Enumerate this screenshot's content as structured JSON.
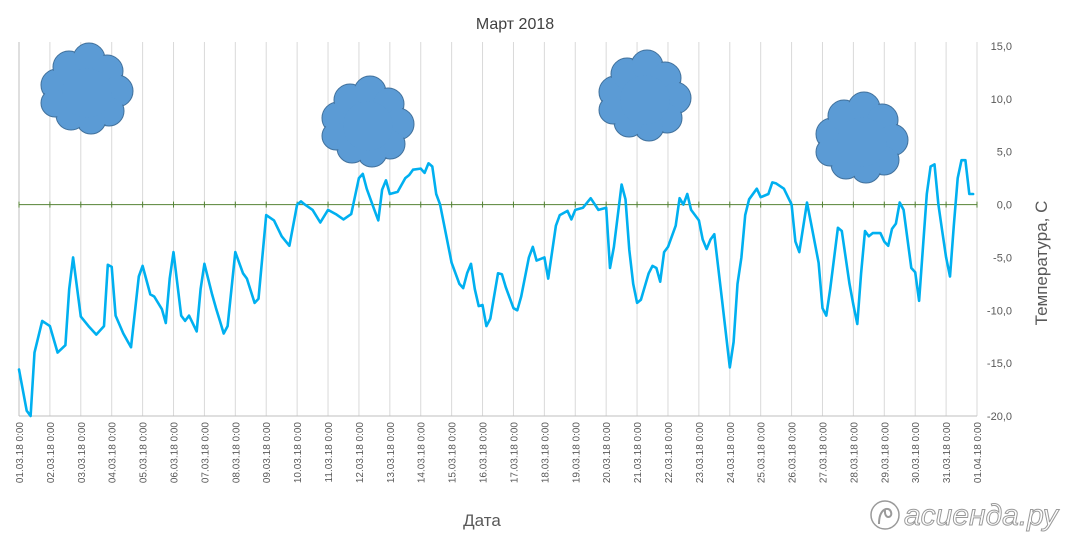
{
  "chart_data": {
    "type": "line",
    "title": "Март 2018",
    "xlabel": "Дата",
    "ylabel": "Температура, С",
    "ylim": [
      -20,
      15
    ],
    "y_tick_step": 5,
    "y_ticks": [
      "15,0",
      "10,0",
      "5,0",
      "0,0",
      "-5,0",
      "-10,0",
      "-15,0",
      "-20,0"
    ],
    "y_axis_position": "right",
    "zero_line": true,
    "grid": "vertical",
    "x_ticks": [
      "01.03.18 0:00",
      "02.03.18 0:00",
      "03.03.18 0:00",
      "04.03.18 0:00",
      "05.03.18 0:00",
      "06.03.18 0:00",
      "07.03.18 0:00",
      "08.03.18 0:00",
      "09.03.18 0:00",
      "10.03.18 0:00",
      "11.03.18 0:00",
      "12.03.18 0:00",
      "13.03.18 0:00",
      "14.03.18 0:00",
      "15.03.18 0:00",
      "16.03.18 0:00",
      "17.03.18 0:00",
      "18.03.18 0:00",
      "19.03.18 0:00",
      "20.03.18 0:00",
      "21.03.18 0:00",
      "22.03.18 0:00",
      "23.03.18 0:00",
      "24.03.18 0:00",
      "25.03.18 0:00",
      "26.03.18 0:00",
      "27.03.18 0:00",
      "28.03.18 0:00",
      "29.03.18 0:00",
      "30.03.18 0:00",
      "31.03.18 0:00",
      "01.04.18 0:00"
    ],
    "x_start": "01.03.18 0:00",
    "x_end": "01.04.18 0:00",
    "series": [
      {
        "color": "#00b0f0",
        "points": [
          [
            "01.03.18 0:00",
            -15.6
          ],
          [
            "01.03.18 6:00",
            -19.5
          ],
          [
            "01.03.18 9:00",
            -20.0
          ],
          [
            "01.03.18 12:00",
            -14.0
          ],
          [
            "01.03.18 18:00",
            -11.0
          ],
          [
            "02.03.18 0:00",
            -11.5
          ],
          [
            "02.03.18 6:00",
            -14.0
          ],
          [
            "02.03.18 12:00",
            -13.3
          ],
          [
            "02.03.18 15:00",
            -8.0
          ],
          [
            "02.03.18 18:00",
            -5.0
          ],
          [
            "03.03.18 0:00",
            -10.6
          ],
          [
            "03.03.18 6:00",
            -11.5
          ],
          [
            "03.03.18 12:00",
            -12.3
          ],
          [
            "03.03.18 18:00",
            -11.5
          ],
          [
            "03.03.18 21:00",
            -5.7
          ],
          [
            "04.03.18 0:00",
            -5.9
          ],
          [
            "04.03.18 3:00",
            -10.5
          ],
          [
            "04.03.18 9:00",
            -12.2
          ],
          [
            "04.03.18 15:00",
            -13.5
          ],
          [
            "04.03.18 21:00",
            -6.8
          ],
          [
            "05.03.18 0:00",
            -5.8
          ],
          [
            "05.03.18 6:00",
            -8.5
          ],
          [
            "05.03.18 9:00",
            -8.7
          ],
          [
            "05.03.18 15:00",
            -9.9
          ],
          [
            "05.03.18 18:00",
            -11.2
          ],
          [
            "05.03.18 21:00",
            -7.0
          ],
          [
            "06.03.18 0:00",
            -4.5
          ],
          [
            "06.03.18 6:00",
            -10.5
          ],
          [
            "06.03.18 9:00",
            -11.0
          ],
          [
            "06.03.18 12:00",
            -10.5
          ],
          [
            "06.03.18 18:00",
            -12.0
          ],
          [
            "06.03.18 21:00",
            -8.0
          ],
          [
            "07.03.18 0:00",
            -5.6
          ],
          [
            "07.03.18 6:00",
            -8.5
          ],
          [
            "07.03.18 9:00",
            -9.8
          ],
          [
            "07.03.18 12:00",
            -11.0
          ],
          [
            "07.03.18 15:00",
            -12.2
          ],
          [
            "07.03.18 18:00",
            -11.5
          ],
          [
            "08.03.18 0:00",
            -4.5
          ],
          [
            "08.03.18 6:00",
            -6.5
          ],
          [
            "08.03.18 9:00",
            -7.0
          ],
          [
            "08.03.18 15:00",
            -9.3
          ],
          [
            "08.03.18 18:00",
            -8.9
          ],
          [
            "09.03.18 0:00",
            -1.0
          ],
          [
            "09.03.18 6:00",
            -1.5
          ],
          [
            "09.03.18 12:00",
            -3.0
          ],
          [
            "09.03.18 18:00",
            -3.9
          ],
          [
            "10.03.18 0:00",
            0.0
          ],
          [
            "10.03.18 3:00",
            0.3
          ],
          [
            "10.03.18 6:00",
            0.0
          ],
          [
            "10.03.18 12:00",
            -0.5
          ],
          [
            "10.03.18 18:00",
            -1.7
          ],
          [
            "11.03.18 0:00",
            -0.5
          ],
          [
            "11.03.18 6:00",
            -0.9
          ],
          [
            "11.03.18 12:00",
            -1.4
          ],
          [
            "11.03.18 18:00",
            -0.9
          ],
          [
            "12.03.18 0:00",
            2.5
          ],
          [
            "12.03.18 3:00",
            2.9
          ],
          [
            "12.03.18 6:00",
            1.5
          ],
          [
            "12.03.18 12:00",
            -0.5
          ],
          [
            "12.03.18 15:00",
            -1.5
          ],
          [
            "12.03.18 18:00",
            1.4
          ],
          [
            "12.03.18 21:00",
            2.3
          ],
          [
            "13.03.18 0:00",
            1.0
          ],
          [
            "13.03.18 6:00",
            1.2
          ],
          [
            "13.03.18 12:00",
            2.5
          ],
          [
            "13.03.18 15:00",
            2.8
          ],
          [
            "13.03.18 18:00",
            3.3
          ],
          [
            "14.03.18 0:00",
            3.4
          ],
          [
            "14.03.18 3:00",
            3.0
          ],
          [
            "14.03.18 6:00",
            3.9
          ],
          [
            "14.03.18 9:00",
            3.6
          ],
          [
            "14.03.18 12:00",
            1.0
          ],
          [
            "14.03.18 15:00",
            0.0
          ],
          [
            "15.03.18 0:00",
            -5.5
          ],
          [
            "15.03.18 6:00",
            -7.5
          ],
          [
            "15.03.18 9:00",
            -7.9
          ],
          [
            "15.03.18 12:00",
            -6.5
          ],
          [
            "15.03.18 15:00",
            -5.6
          ],
          [
            "15.03.18 18:00",
            -8.0
          ],
          [
            "15.03.18 21:00",
            -9.6
          ],
          [
            "16.03.18 0:00",
            -9.5
          ],
          [
            "16.03.18 3:00",
            -11.5
          ],
          [
            "16.03.18 6:00",
            -10.8
          ],
          [
            "16.03.18 12:00",
            -6.5
          ],
          [
            "16.03.18 15:00",
            -6.6
          ],
          [
            "16.03.18 18:00",
            -7.8
          ],
          [
            "17.03.18 0:00",
            -9.8
          ],
          [
            "17.03.18 3:00",
            -10.0
          ],
          [
            "17.03.18 6:00",
            -8.7
          ],
          [
            "17.03.18 12:00",
            -5.0
          ],
          [
            "17.03.18 15:00",
            -4.0
          ],
          [
            "17.03.18 18:00",
            -5.3
          ],
          [
            "18.03.18 0:00",
            -5.0
          ],
          [
            "18.03.18 3:00",
            -7.0
          ],
          [
            "18.03.18 9:00",
            -2.0
          ],
          [
            "18.03.18 12:00",
            -1.0
          ],
          [
            "18.03.18 18:00",
            -0.6
          ],
          [
            "18.03.18 21:00",
            -1.4
          ],
          [
            "19.03.18 0:00",
            -0.5
          ],
          [
            "19.03.18 6:00",
            -0.3
          ],
          [
            "19.03.18 12:00",
            0.6
          ],
          [
            "19.03.18 18:00",
            -0.5
          ],
          [
            "20.03.18 0:00",
            -0.3
          ],
          [
            "20.03.18 3:00",
            -6.0
          ],
          [
            "20.03.18 6:00",
            -4.0
          ],
          [
            "20.03.18 12:00",
            1.9
          ],
          [
            "20.03.18 15:00",
            0.5
          ],
          [
            "20.03.18 18:00",
            -4.3
          ],
          [
            "20.03.18 21:00",
            -7.5
          ],
          [
            "21.03.18 0:00",
            -9.3
          ],
          [
            "21.03.18 3:00",
            -9.0
          ],
          [
            "21.03.18 9:00",
            -6.5
          ],
          [
            "21.03.18 12:00",
            -5.8
          ],
          [
            "21.03.18 15:00",
            -6.0
          ],
          [
            "21.03.18 18:00",
            -7.3
          ],
          [
            "21.03.18 21:00",
            -4.5
          ],
          [
            "22.03.18 0:00",
            -4.0
          ],
          [
            "22.03.18 6:00",
            -2.0
          ],
          [
            "22.03.18 9:00",
            0.6
          ],
          [
            "22.03.18 12:00",
            0.0
          ],
          [
            "22.03.18 15:00",
            1.0
          ],
          [
            "22.03.18 18:00",
            -0.5
          ],
          [
            "23.03.18 0:00",
            -1.5
          ],
          [
            "23.03.18 3:00",
            -3.3
          ],
          [
            "23.03.18 6:00",
            -4.2
          ],
          [
            "23.03.18 9:00",
            -3.3
          ],
          [
            "23.03.18 12:00",
            -2.8
          ],
          [
            "23.03.18 18:00",
            -9.0
          ],
          [
            "24.03.18 0:00",
            -15.4
          ],
          [
            "24.03.18 3:00",
            -13.0
          ],
          [
            "24.03.18 6:00",
            -7.5
          ],
          [
            "24.03.18 9:00",
            -5.0
          ],
          [
            "24.03.18 12:00",
            -1.0
          ],
          [
            "24.03.18 15:00",
            0.5
          ],
          [
            "24.03.18 21:00",
            1.5
          ],
          [
            "25.03.18 0:00",
            0.7
          ],
          [
            "25.03.18 6:00",
            1.0
          ],
          [
            "25.03.18 9:00",
            2.1
          ],
          [
            "25.03.18 12:00",
            2.0
          ],
          [
            "25.03.18 18:00",
            1.5
          ],
          [
            "26.03.18 0:00",
            0.0
          ],
          [
            "26.03.18 3:00",
            -3.5
          ],
          [
            "26.03.18 6:00",
            -4.5
          ],
          [
            "26.03.18 12:00",
            0.2
          ],
          [
            "26.03.18 15:00",
            -1.7
          ],
          [
            "26.03.18 21:00",
            -5.5
          ],
          [
            "27.03.18 0:00",
            -9.8
          ],
          [
            "27.03.18 3:00",
            -10.5
          ],
          [
            "27.03.18 6:00",
            -8.0
          ],
          [
            "27.03.18 12:00",
            -2.2
          ],
          [
            "27.03.18 15:00",
            -2.5
          ],
          [
            "27.03.18 21:00",
            -7.5
          ],
          [
            "28.03.18 0:00",
            -9.5
          ],
          [
            "28.03.18 3:00",
            -11.3
          ],
          [
            "28.03.18 6:00",
            -6.5
          ],
          [
            "28.03.18 9:00",
            -2.5
          ],
          [
            "28.03.18 12:00",
            -3.0
          ],
          [
            "28.03.18 15:00",
            -2.7
          ],
          [
            "28.03.18 21:00",
            -2.7
          ],
          [
            "29.03.18 0:00",
            -3.5
          ],
          [
            "29.03.18 3:00",
            -3.9
          ],
          [
            "29.03.18 6:00",
            -2.3
          ],
          [
            "29.03.18 9:00",
            -1.8
          ],
          [
            "29.03.18 12:00",
            0.2
          ],
          [
            "29.03.18 15:00",
            -0.5
          ],
          [
            "29.03.18 21:00",
            -6.0
          ],
          [
            "30.03.18 0:00",
            -6.4
          ],
          [
            "30.03.18 3:00",
            -9.1
          ],
          [
            "30.03.18 9:00",
            1.0
          ],
          [
            "30.03.18 12:00",
            3.6
          ],
          [
            "30.03.18 15:00",
            3.8
          ],
          [
            "30.03.18 18:00",
            0.0
          ],
          [
            "30.03.18 21:00",
            -2.5
          ],
          [
            "31.03.18 0:00",
            -5.0
          ],
          [
            "31.03.18 3:00",
            -6.8
          ],
          [
            "31.03.18 6:00",
            -2.0
          ],
          [
            "31.03.18 9:00",
            2.5
          ],
          [
            "31.03.18 12:00",
            4.2
          ],
          [
            "31.03.18 15:00",
            4.2
          ],
          [
            "31.03.18 18:00",
            1.0
          ],
          [
            "31.03.18 21:00",
            1.0
          ]
        ]
      }
    ],
    "zero_line_color": "#548235",
    "decorations": [
      {
        "icon": "cloud-icon",
        "color": "#5b9bd5",
        "outline": "#41719c"
      },
      {
        "icon": "cloud-icon",
        "color": "#5b9bd5",
        "outline": "#41719c"
      },
      {
        "icon": "cloud-icon",
        "color": "#5b9bd5",
        "outline": "#41719c"
      },
      {
        "icon": "cloud-icon",
        "color": "#5b9bd5",
        "outline": "#41719c"
      }
    ],
    "watermark": "асиенда.ру"
  }
}
